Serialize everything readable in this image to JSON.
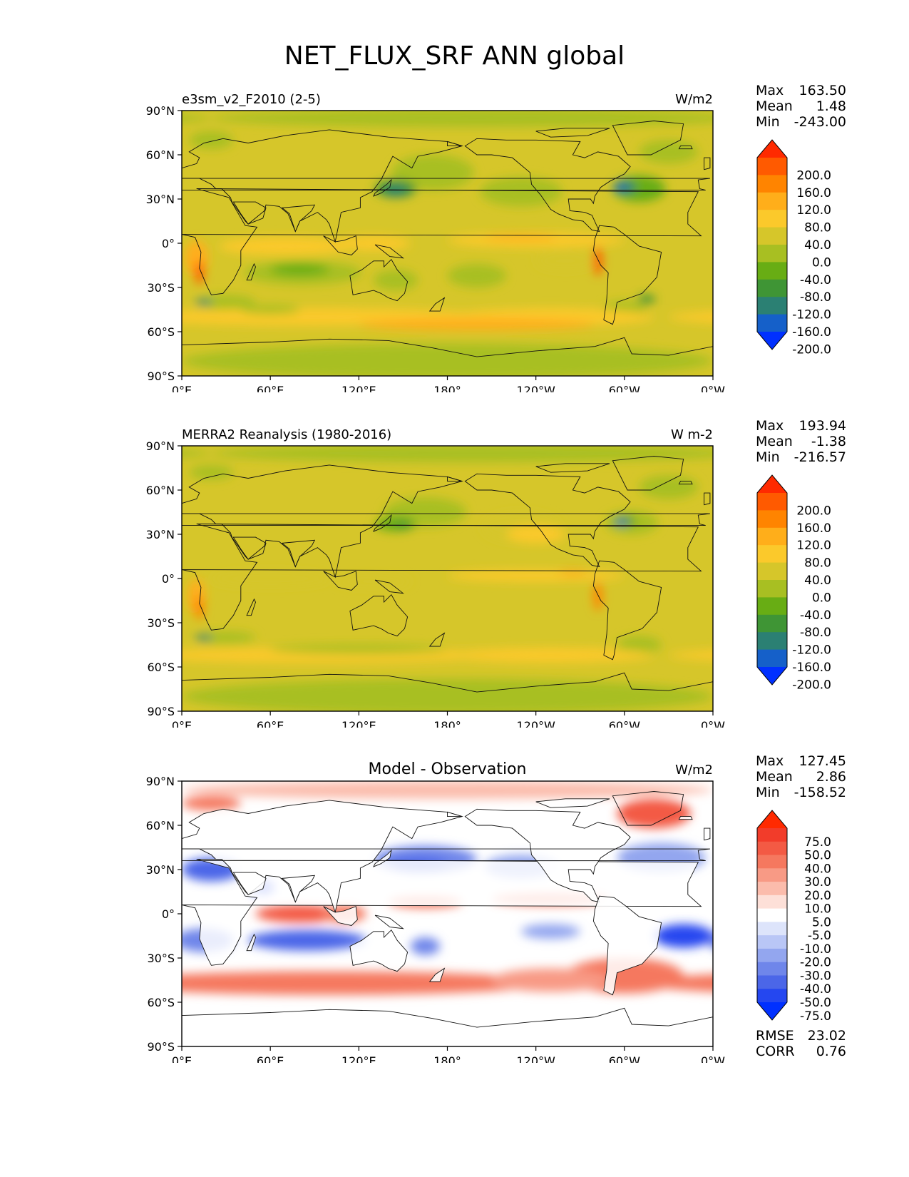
{
  "title": "NET_FLUX_SRF ANN global",
  "axes": {
    "lat_ticks": [
      "90°N",
      "60°N",
      "30°N",
      "0°",
      "30°S",
      "60°S",
      "90°S"
    ],
    "lon_ticks": [
      "0°E",
      "60°E",
      "120°E",
      "180°",
      "120°W",
      "60°W",
      "0°W"
    ]
  },
  "chart_data": [
    {
      "type": "heatmap",
      "kind": "map",
      "title": "",
      "left_label": "e3sm_v2_F2010 (2-5)",
      "units": "W/m2",
      "stats": {
        "max_label": "Max",
        "max": "163.50",
        "mean_label": "Mean",
        "mean": "1.48",
        "min_label": "Min",
        "min": "-243.00"
      },
      "palette": "abs",
      "variant": "model",
      "colorbar": {
        "levels": [
          "200.0",
          "160.0",
          "120.0",
          "80.0",
          "40.0",
          "0.0",
          "-40.0",
          "-80.0",
          "-120.0",
          "-160.0",
          "-200.0"
        ],
        "colors": [
          "#ff2a00",
          "#ff5a00",
          "#ff8400",
          "#ffae1a",
          "#fbc92b",
          "#d6c62a",
          "#a8bf22",
          "#68ad14",
          "#3f9535",
          "#2b8073",
          "#1560c9",
          "#0030ff"
        ]
      },
      "xlim": [
        0,
        360
      ],
      "ylim": [
        -90,
        90
      ]
    },
    {
      "type": "heatmap",
      "kind": "map",
      "title": "",
      "left_label": "MERRA2 Reanalysis (1980-2016)",
      "units": "W m-2",
      "stats": {
        "max_label": "Max",
        "max": "193.94",
        "mean_label": "Mean",
        "mean": "-1.38",
        "min_label": "Min",
        "min": "-216.57"
      },
      "palette": "abs",
      "variant": "obs",
      "colorbar": {
        "levels": [
          "200.0",
          "160.0",
          "120.0",
          "80.0",
          "40.0",
          "0.0",
          "-40.0",
          "-80.0",
          "-120.0",
          "-160.0",
          "-200.0"
        ],
        "colors": [
          "#ff2a00",
          "#ff5a00",
          "#ff8400",
          "#ffae1a",
          "#fbc92b",
          "#d6c62a",
          "#a8bf22",
          "#68ad14",
          "#3f9535",
          "#2b8073",
          "#1560c9",
          "#0030ff"
        ]
      },
      "xlim": [
        0,
        360
      ],
      "ylim": [
        -90,
        90
      ]
    },
    {
      "type": "heatmap",
      "kind": "map",
      "title": "Model - Observation",
      "left_label": "",
      "units": "W/m2",
      "stats": {
        "max_label": "Max",
        "max": "127.45",
        "mean_label": "Mean",
        "mean": "2.86",
        "min_label": "Min",
        "min": "-158.52"
      },
      "extra_stats": {
        "rmse_label": "RMSE",
        "rmse": "23.02",
        "corr_label": "CORR",
        "corr": "0.76"
      },
      "palette": "diff",
      "variant": "diff",
      "colorbar": {
        "levels": [
          "75.0",
          "50.0",
          "40.0",
          "30.0",
          "20.0",
          "10.0",
          "5.0",
          "-5.0",
          "-10.0",
          "-20.0",
          "-30.0",
          "-40.0",
          "-50.0",
          "-75.0"
        ],
        "colors": [
          "#ff2a00",
          "#f23c2a",
          "#f35a44",
          "#f5785f",
          "#f89a85",
          "#fbbcac",
          "#fde0d8",
          "#ffffff",
          "#dde4fb",
          "#b9c6f6",
          "#93a6ef",
          "#6f86ea",
          "#4b66e8",
          "#2547f0",
          "#0030ff"
        ]
      },
      "xlim": [
        0,
        360
      ],
      "ylim": [
        -90,
        90
      ]
    }
  ]
}
